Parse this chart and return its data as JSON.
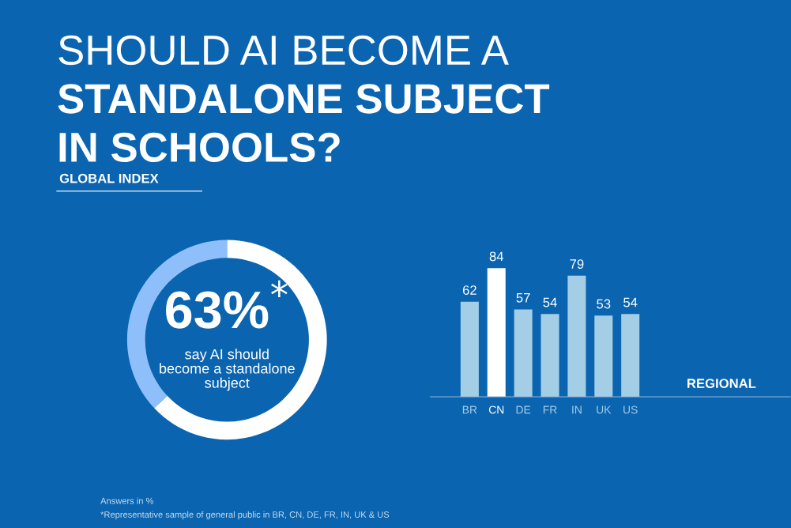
{
  "chart_data": [
    {
      "type": "donut",
      "title": "SHOULD AI BECOME A\nSTANDALONE SUBJECT\nIN SCHOOLS?",
      "subtitle": "GLOBAL INDEX",
      "categories": [
        null,
        null
      ],
      "values": [
        63,
        37
      ],
      "colors": [
        "#ffffff",
        "#8fbffa"
      ],
      "value_labels": [
        "63%$^{*}$",
        null
      ],
      "annotations": [
        "say AI should\nbecome a standalone\nsubject",
        "Answers in %",
        "*Representative sample of general public in BR, CN, DE, FR, IN, UK & US"
      ]
    },
    {
      "type": "bar",
      "annotations": [
        "REGIONAL"
      ],
      "categories": [
        "BR",
        "CN",
        "DE",
        "FR",
        "IN",
        "UK",
        "US"
      ],
      "values": [
        62,
        84,
        57,
        54,
        79,
        53,
        54
      ],
      "colors": [
        "#a4cde6",
        "#ffffff",
        "#a4cde6",
        "#a4cde6",
        "#a4cde6",
        "#a4cde6",
        "#a4cde6"
      ],
      "data_labels": true
    }
  ]
}
